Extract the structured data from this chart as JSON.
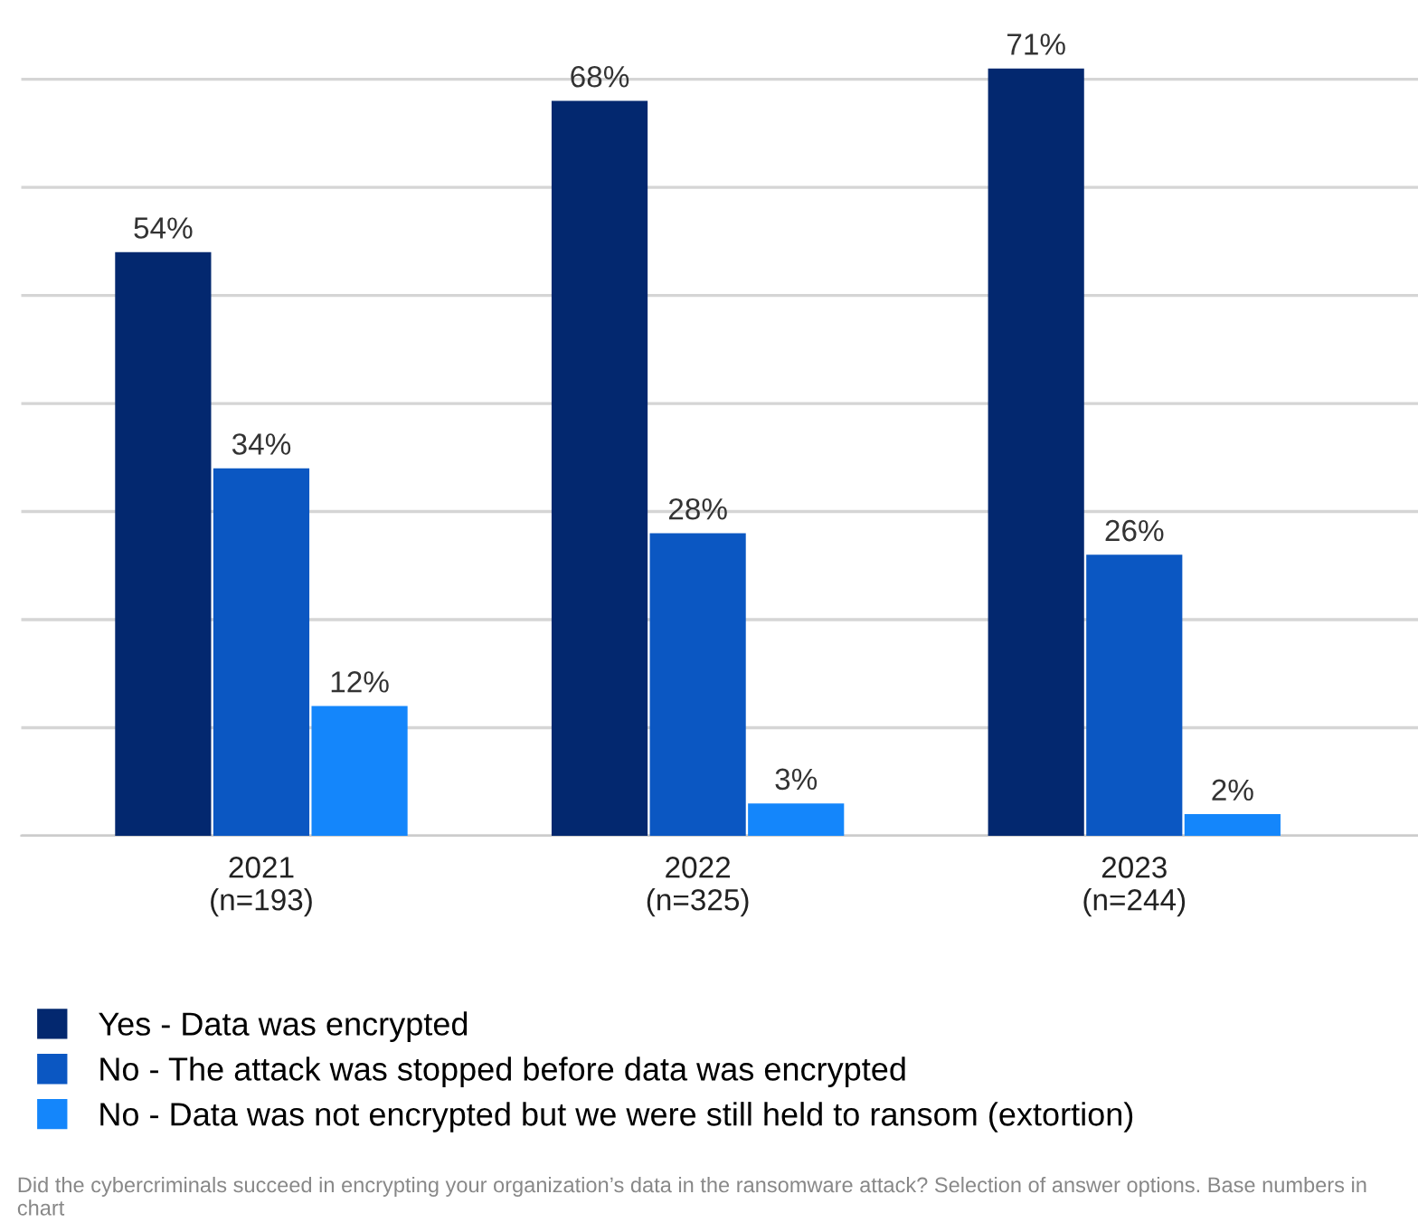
{
  "chart_data": {
    "type": "bar",
    "categories": [
      "2021\n(n=193)",
      "2022\n(n=325)",
      "2023\n(n=244)"
    ],
    "series": [
      {
        "name": "Yes - Data was encrypted",
        "color": "#03286f",
        "values": [
          54,
          68,
          71
        ],
        "value_labels": [
          "54%",
          "68%",
          "71%"
        ]
      },
      {
        "name": "No - The attack was stopped before data was encrypted",
        "color": "#0b57c2",
        "values": [
          34,
          28,
          26
        ],
        "value_labels": [
          "34%",
          "28%",
          "26%"
        ]
      },
      {
        "name": "No - Data was not encrypted but we were still held to ransom (extortion)",
        "color": "#1486fb",
        "values": [
          12,
          3,
          2
        ],
        "value_labels": [
          "12%",
          "3%",
          "2%"
        ]
      }
    ],
    "grid": "y",
    "legend": "bottom",
    "tick_labels": "x",
    "annotations": [
      "Did the cybercriminals succeed in encrypting your organization’s data in the ransomware attack? Selection of answer options. Base numbers in chart"
    ]
  }
}
